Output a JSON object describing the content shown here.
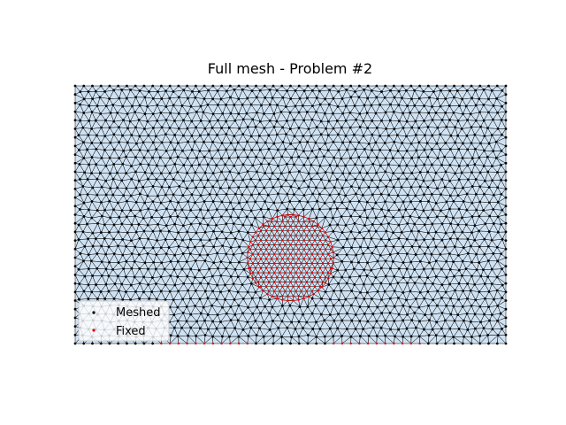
{
  "chart_data": {
    "type": "scatter",
    "title": "Full mesh - Problem #2",
    "xlabel": "",
    "ylabel": "",
    "xlim": [
      0,
      1
    ],
    "ylim": [
      0,
      0.6
    ],
    "axes_visible": false,
    "grid": false,
    "mesh_fill_color": "#cfe2f3",
    "mesh_edge_color": "#000000",
    "legend_position": "lower-left",
    "series": [
      {
        "name": "Meshed",
        "color": "#000000",
        "description": "mesh nodes on outer boundary and interior"
      },
      {
        "name": "Fixed",
        "color": "#e00000",
        "description": "nodes inside disc and on two bottom segments"
      }
    ],
    "fixed_regions": {
      "disc": {
        "center": [
          0.5,
          0.2
        ],
        "radius": 0.1
      },
      "bottom_segments": [
        [
          0.2,
          0.4
        ],
        [
          0.6,
          0.8
        ]
      ]
    }
  }
}
